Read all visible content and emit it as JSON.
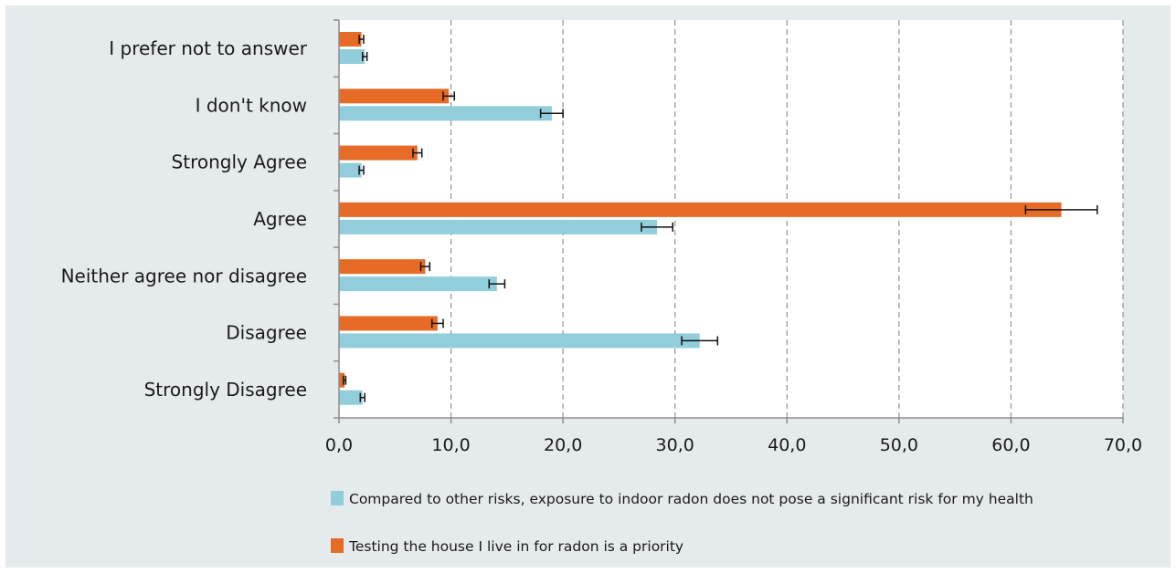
{
  "chart_data": {
    "type": "bar",
    "orientation": "horizontal",
    "categories": [
      "I prefer not to answer",
      "I don't know",
      "Strongly Agree",
      "Agree",
      "Neither agree nor disagree",
      "Disagree",
      "Strongly Disagree"
    ],
    "series": [
      {
        "name": "Testing the house I live in for radon is a priority",
        "color": "#e56b26",
        "values": [
          2.0,
          9.8,
          7.0,
          64.5,
          7.7,
          8.8,
          0.5
        ],
        "errors": [
          0.2,
          0.5,
          0.4,
          3.2,
          0.4,
          0.5,
          0.1
        ]
      },
      {
        "name": "Compared to other risks, exposure to indoor radon does not pose a significant risk for my health",
        "color": "#92cddb",
        "values": [
          2.3,
          19.0,
          2.0,
          28.4,
          14.1,
          32.2,
          2.1
        ],
        "errors": [
          0.2,
          1.0,
          0.2,
          1.4,
          0.7,
          1.6,
          0.2
        ]
      }
    ],
    "xlim": [
      0,
      70
    ],
    "xticks": [
      "0,0",
      "10,0",
      "20,0",
      "30,0",
      "40,0",
      "50,0",
      "60,0",
      "70,0"
    ],
    "grid": "vertical dashed",
    "legend_position": "bottom",
    "legend_order": [
      1,
      0
    ],
    "title": "",
    "xlabel": "",
    "ylabel": ""
  }
}
